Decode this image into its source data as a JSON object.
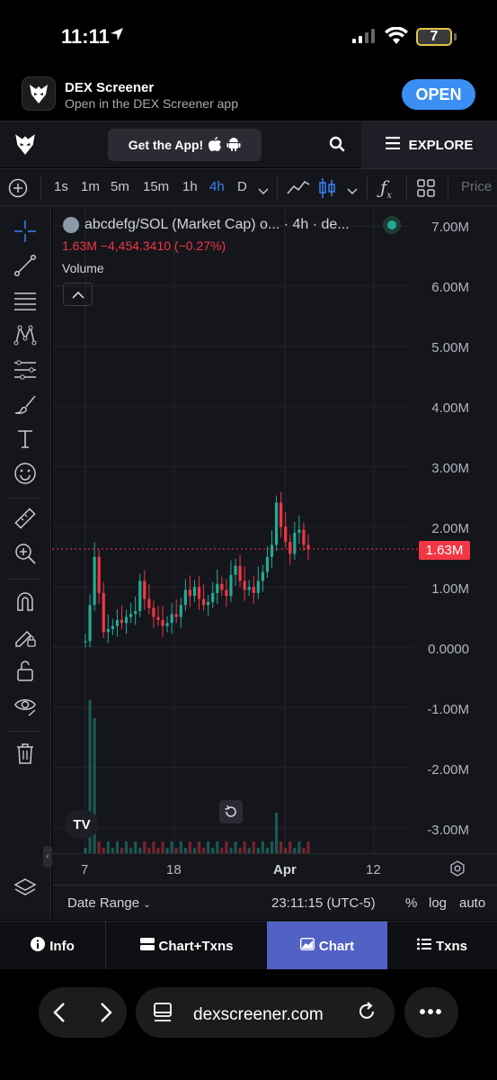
{
  "status_bar": {
    "time": "11:11",
    "battery": "7"
  },
  "app_banner": {
    "name": "DEX Screener",
    "subtitle": "Open in the DEX Screener app",
    "open_label": "OPEN"
  },
  "header": {
    "get_app_label": "Get the App!",
    "explore_label": "EXPLORE"
  },
  "toolbar": {
    "intervals": [
      "1s",
      "1m",
      "5m",
      "15m",
      "1h",
      "4h",
      "D"
    ],
    "active_interval": "4h",
    "price_label": "Price"
  },
  "chart_legend": {
    "title": "abcdefg/SOL (Market Cap) o... · 4h · de...",
    "values": "1.63M  −4,454.3410 (−0.27%)",
    "volume_label": "Volume"
  },
  "chart_data": {
    "type": "candlestick",
    "title": "abcdefg/SOL (Market Cap)",
    "interval": "4h",
    "y_ticks": [
      "7.00M",
      "6.00M",
      "5.00M",
      "4.00M",
      "3.00M",
      "2.00M",
      "1.00M",
      "0.0000",
      "-1.00M",
      "-2.00M",
      "-3.00M"
    ],
    "ylim": [
      -3.4,
      7.5
    ],
    "y_unit": "M",
    "x_ticks": [
      "7",
      "18",
      "Apr",
      "12"
    ],
    "current_price_label": "1.63M",
    "current_value": 1.63,
    "close_series": [
      0.1,
      0.7,
      1.5,
      0.9,
      0.25,
      0.3,
      0.35,
      0.45,
      0.4,
      0.5,
      0.55,
      0.6,
      1.1,
      0.8,
      0.65,
      0.5,
      0.45,
      0.35,
      0.4,
      0.55,
      0.5,
      0.7,
      0.95,
      0.85,
      1.0,
      0.8,
      0.7,
      0.75,
      0.9,
      1.05,
      0.95,
      0.85,
      1.2,
      1.35,
      1.1,
      0.95,
      1.0,
      0.9,
      1.1,
      1.25,
      1.5,
      1.7,
      2.4,
      2.0,
      1.75,
      1.55,
      1.9,
      1.95,
      1.7,
      1.63
    ],
    "colors": {
      "up": "#22ab94",
      "down": "#f23645",
      "background": "#15161c"
    }
  },
  "x_axis_footer": {
    "date_range_label": "Date Range",
    "time": "23:11:15 (UTC-5)",
    "pct": "%",
    "log": "log",
    "auto": "auto"
  },
  "bottom_tabs": {
    "info": "Info",
    "chart_txns": "Chart+Txns",
    "chart": "Chart",
    "txns": "Txns",
    "active": "Chart"
  },
  "browser": {
    "url": "dexscreener.com",
    "more": "•••"
  }
}
